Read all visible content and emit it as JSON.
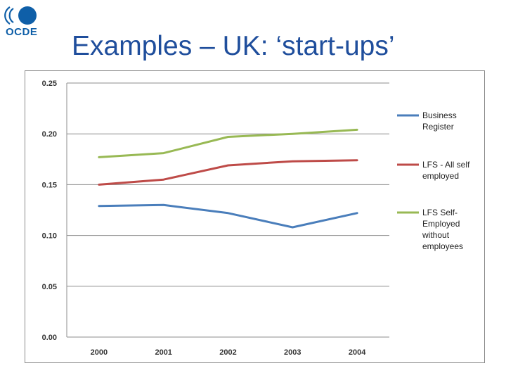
{
  "slide": {
    "title": "Examples – UK: ‘start-ups’",
    "logo_text": "OCDE"
  },
  "colors": {
    "title": "#1f4e9c",
    "logo": "#0f5fa8",
    "grid": "#8c8c8c"
  },
  "chart_data": {
    "type": "line",
    "title": "",
    "xlabel": "",
    "ylabel": "",
    "x": [
      "2000",
      "2001",
      "2002",
      "2003",
      "2004"
    ],
    "ylim": [
      0,
      0.25
    ],
    "yticks": [
      "0.00",
      "0.05",
      "0.10",
      "0.15",
      "0.20",
      "0.25"
    ],
    "grid": true,
    "legend_position": "right",
    "series": [
      {
        "name": [
          "Business",
          "Register"
        ],
        "color": "#4a7ebb",
        "values": [
          0.129,
          0.13,
          0.122,
          0.108,
          0.122
        ]
      },
      {
        "name": [
          "LFS - All self",
          "employed"
        ],
        "color": "#be4b48",
        "values": [
          0.15,
          0.155,
          0.169,
          0.173,
          0.174
        ]
      },
      {
        "name": [
          "LFS Self-",
          "Employed",
          "without",
          "employees"
        ],
        "color": "#98b954",
        "values": [
          0.177,
          0.181,
          0.197,
          0.2,
          0.204
        ]
      }
    ]
  }
}
